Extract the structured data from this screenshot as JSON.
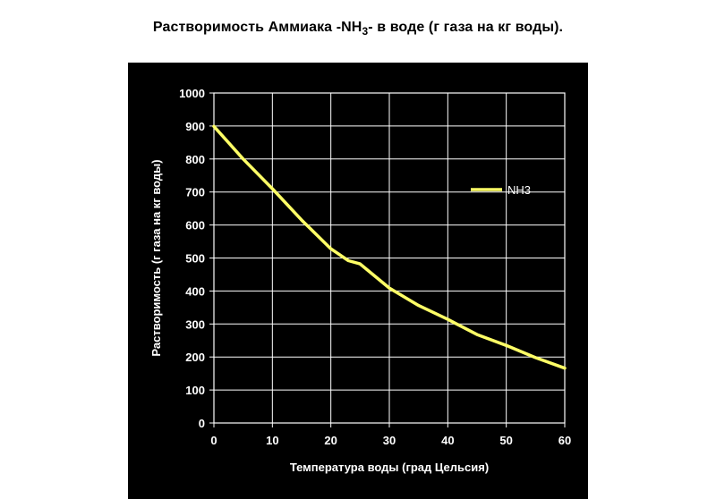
{
  "title": {
    "before_sub": "Растворимость Аммиака -NH",
    "sub": "3",
    "after_sub": "- в воде (г газа на кг воды)."
  },
  "colors": {
    "background": "#ffffff",
    "panel": "#000000",
    "grid": "#ffffff",
    "text": "#ffffff",
    "series": "#ffff66"
  },
  "chart_data": {
    "type": "line",
    "title": "Растворимость Аммиака -NH3- в воде (г газа на кг воды).",
    "xlabel": "Температура воды (град Цельсия)",
    "ylabel": "Растворимость (г газа на кг воды)",
    "xlim": [
      0,
      60
    ],
    "ylim": [
      0,
      1000
    ],
    "xticks": [
      0,
      10,
      20,
      30,
      40,
      50,
      60
    ],
    "yticks": [
      0,
      100,
      200,
      300,
      400,
      500,
      600,
      700,
      800,
      900,
      1000
    ],
    "grid": true,
    "legend": "right",
    "series": [
      {
        "name": "NH3",
        "color": "#ffff66",
        "x": [
          0,
          5,
          10,
          15,
          20,
          23,
          25,
          30,
          35,
          40,
          45,
          50,
          55,
          60
        ],
        "y": [
          899,
          800,
          710,
          615,
          528,
          492,
          482,
          409,
          356,
          314,
          268,
          235,
          198,
          166
        ]
      }
    ]
  }
}
